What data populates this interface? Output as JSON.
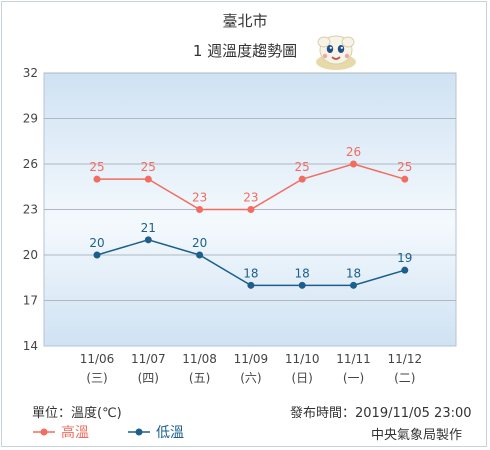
{
  "header": {
    "city": "臺北市",
    "subtitle": "1 週溫度趨勢圖"
  },
  "chart_data": {
    "type": "line",
    "categories": [
      "11/06",
      "11/07",
      "11/08",
      "11/09",
      "11/10",
      "11/11",
      "11/12"
    ],
    "category_sublabels": [
      "(三)",
      "(四)",
      "(五)",
      "(六)",
      "(日)",
      "(一)",
      "(二)"
    ],
    "series": [
      {
        "name": "高溫",
        "values": [
          25,
          25,
          23,
          23,
          25,
          26,
          25
        ],
        "color": "#f26c5f"
      },
      {
        "name": "低溫",
        "values": [
          20,
          21,
          20,
          18,
          18,
          18,
          19
        ],
        "color": "#1c5f8c"
      }
    ],
    "ylim": [
      14,
      32
    ],
    "yticks": [
      14,
      17,
      20,
      23,
      26,
      29,
      32
    ],
    "grid": true,
    "legend_position": "bottom-left"
  },
  "footer": {
    "unit": "單位：溫度(℃)",
    "issued": "發布時間：2019/11/05 23:00",
    "agency": "中央氣象局製作"
  },
  "colors": {
    "plot_bg_top": "#cfe2f3",
    "plot_bg_mid": "#f4f9fd",
    "grid": "#aeb8c2",
    "axis_text": "#444444"
  }
}
